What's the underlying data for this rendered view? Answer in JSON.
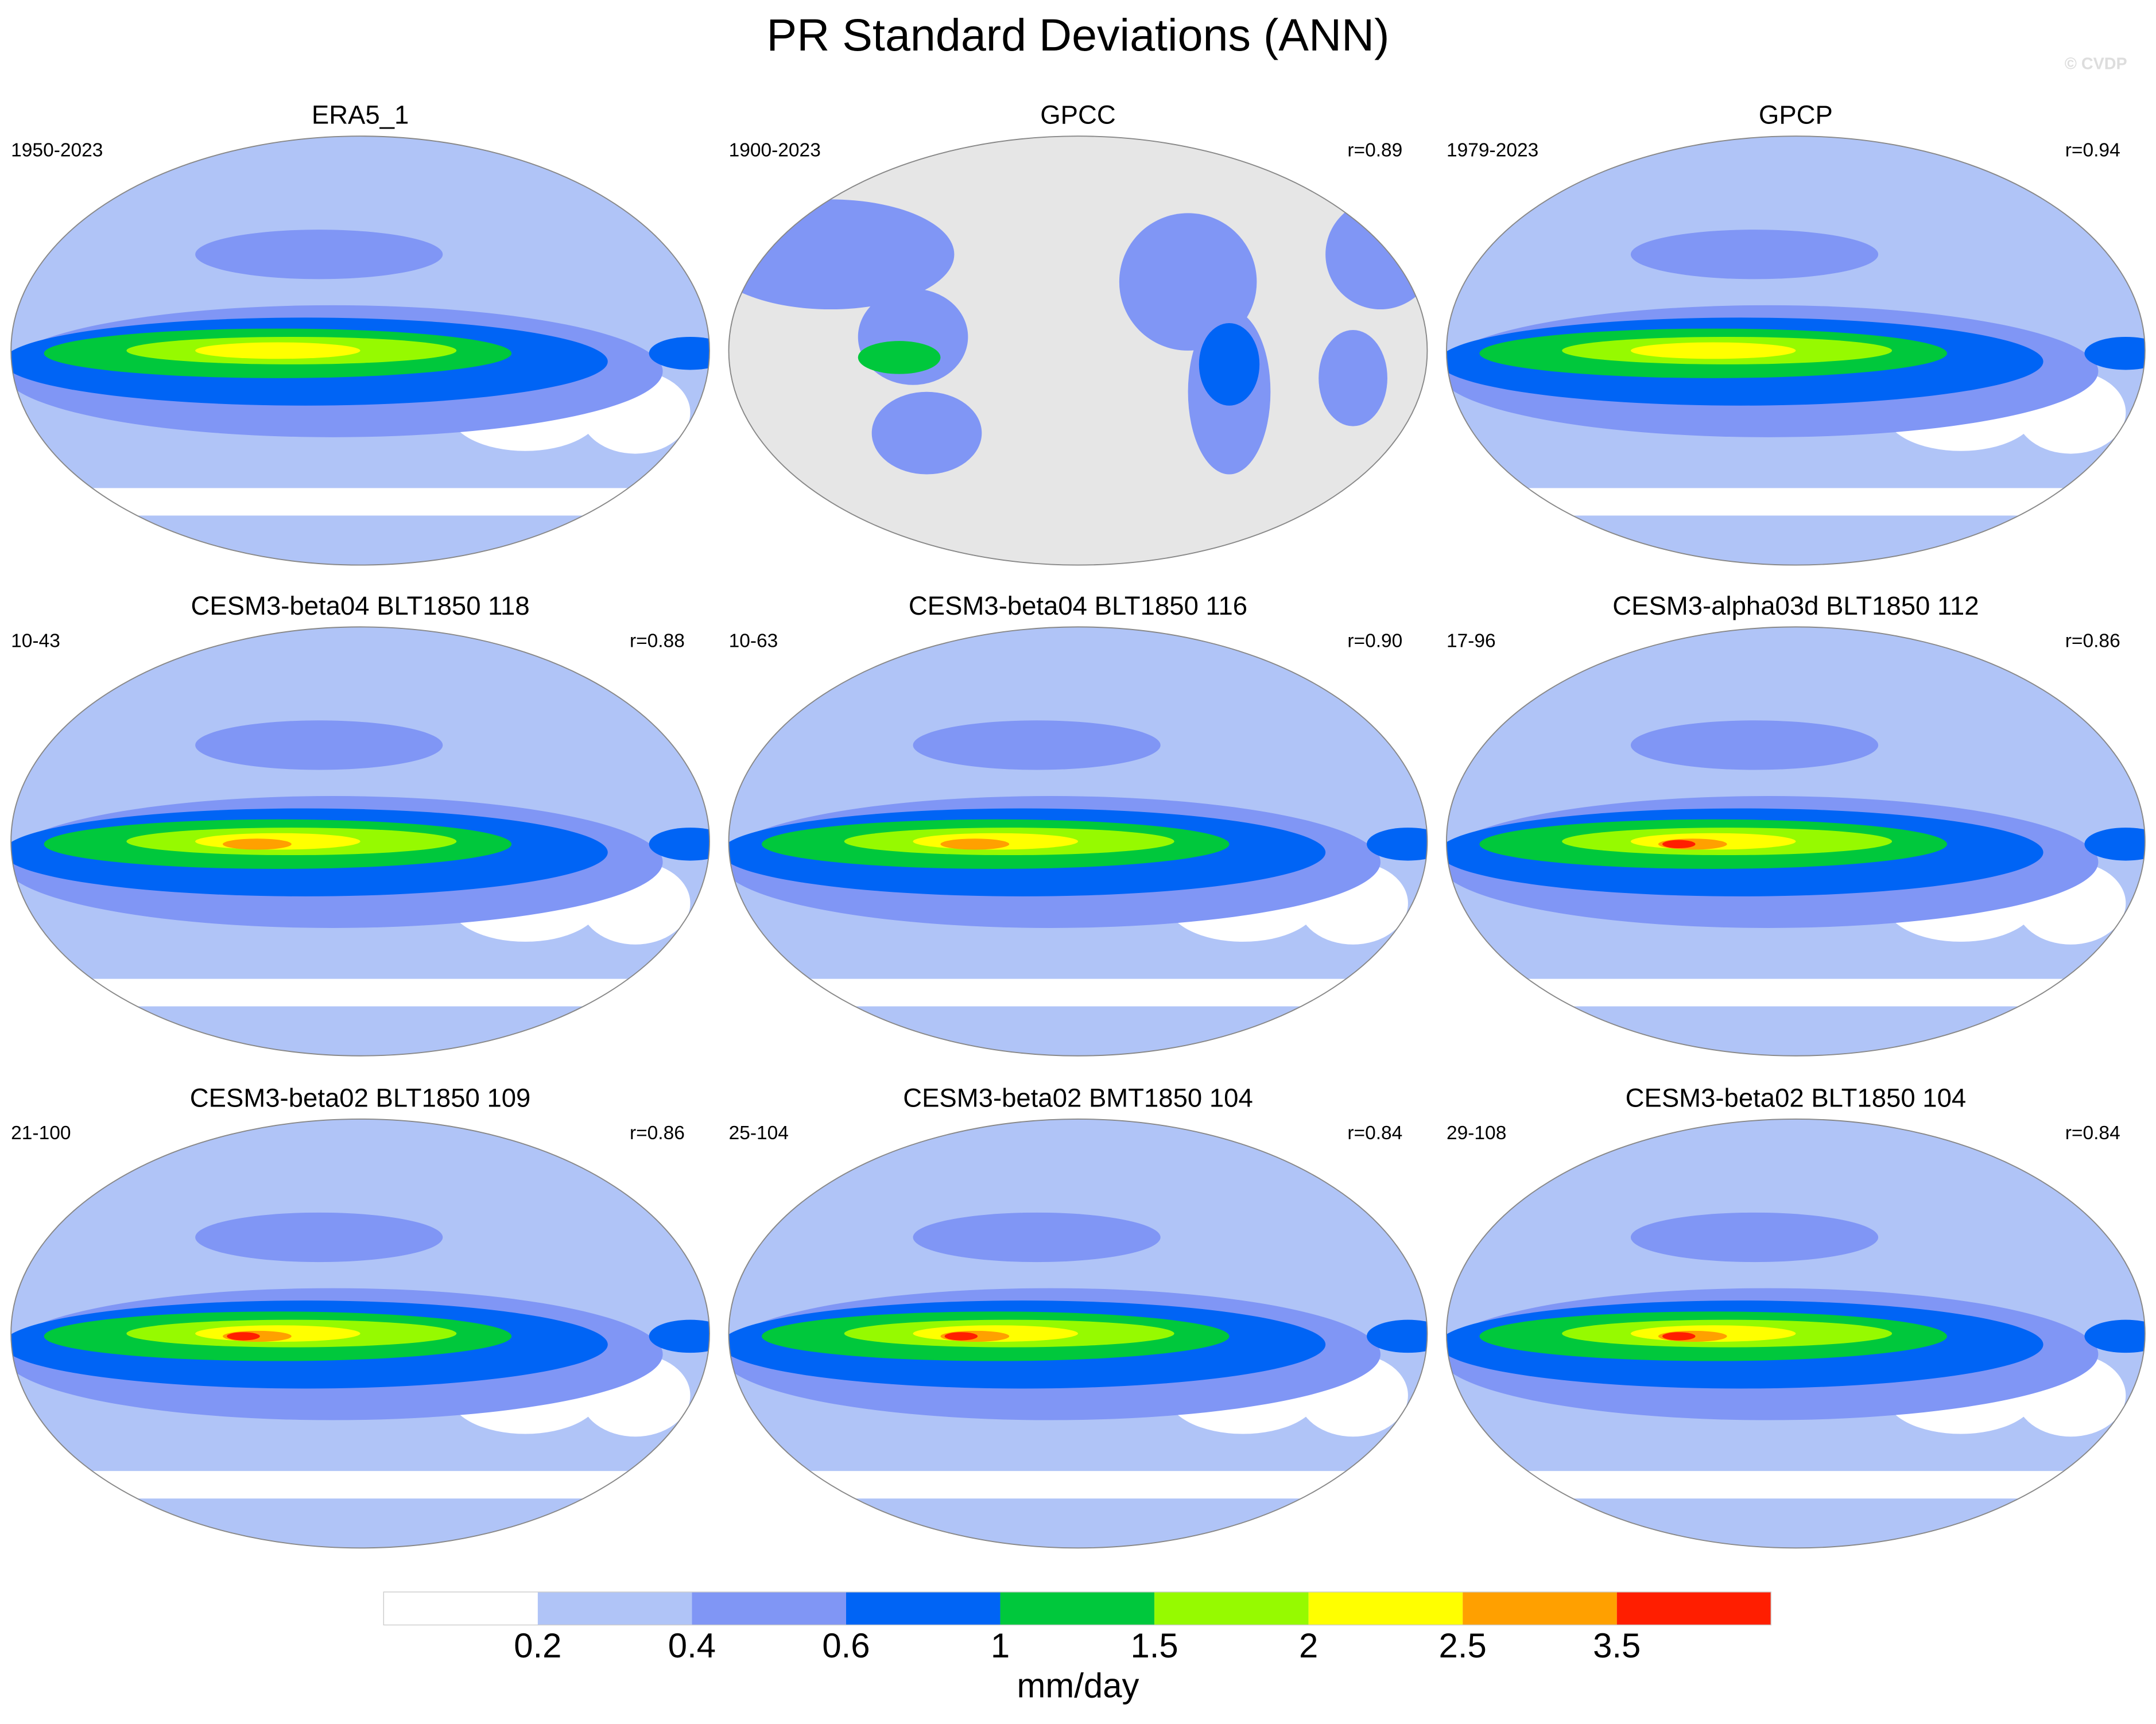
{
  "title": "PR Standard Deviations (ANN)",
  "watermark": "© CVDP",
  "panels": [
    {
      "title": "ERA5_1",
      "period": "1950-2023",
      "r": null
    },
    {
      "title": "GPCC",
      "period": "1900-2023",
      "r": "r=0.89"
    },
    {
      "title": "GPCP",
      "period": "1979-2023",
      "r": "r=0.94"
    },
    {
      "title": "CESM3-beta04 BLT1850 118",
      "period": "10-43",
      "r": "r=0.88"
    },
    {
      "title": "CESM3-beta04 BLT1850 116",
      "period": "10-63",
      "r": "r=0.90"
    },
    {
      "title": "CESM3-alpha03d BLT1850 112",
      "period": "17-96",
      "r": "r=0.86"
    },
    {
      "title": "CESM3-beta02 BLT1850 109",
      "period": "21-100",
      "r": "r=0.86"
    },
    {
      "title": "CESM3-beta02 BMT1850 104",
      "period": "25-104",
      "r": "r=0.84"
    },
    {
      "title": "CESM3-beta02 BLT1850 104",
      "period": "29-108",
      "r": "r=0.84"
    }
  ],
  "colorbar": {
    "levels": [
      0.2,
      0.4,
      0.6,
      1,
      1.5,
      2,
      2.5,
      3.5
    ],
    "colors": [
      "#ffffff",
      "#b0c4f7",
      "#8096f5",
      "#0064f5",
      "#00c83c",
      "#96fa00",
      "#ffff00",
      "#ffa000",
      "#ff1e00"
    ],
    "label": "mm/day"
  }
}
